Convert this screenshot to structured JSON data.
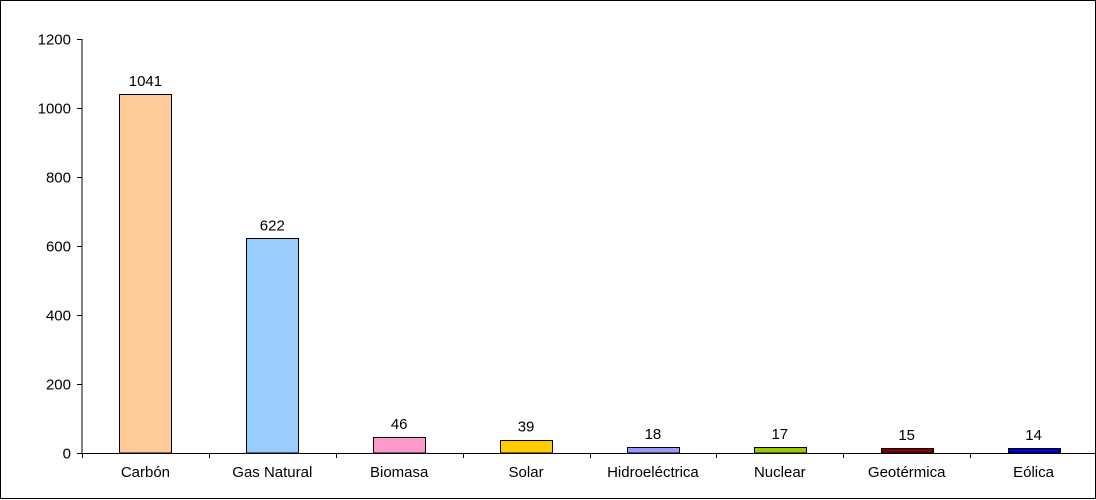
{
  "chart_data": {
    "type": "bar",
    "categories": [
      "Carbón",
      "Gas Natural",
      "Biomasa",
      "Solar",
      "Hidroeléctrica",
      "Nuclear",
      "Geotérmica",
      "Eólica"
    ],
    "values": [
      1041,
      622,
      46,
      39,
      18,
      17,
      15,
      14
    ],
    "data_labels": [
      "1041",
      "622",
      "46",
      "39",
      "18",
      "17",
      "15",
      "14"
    ],
    "bar_colors": [
      "#FFCC99",
      "#99CCFF",
      "#FF99CC",
      "#FFCC00",
      "#9999FF",
      "#99CC00",
      "#800000",
      "#0000CC"
    ],
    "ylim": [
      0,
      1200
    ],
    "yticks": [
      0,
      200,
      400,
      600,
      800,
      1000,
      1200
    ],
    "grid": false,
    "legend": false,
    "title": "",
    "xlabel": "",
    "ylabel": ""
  }
}
